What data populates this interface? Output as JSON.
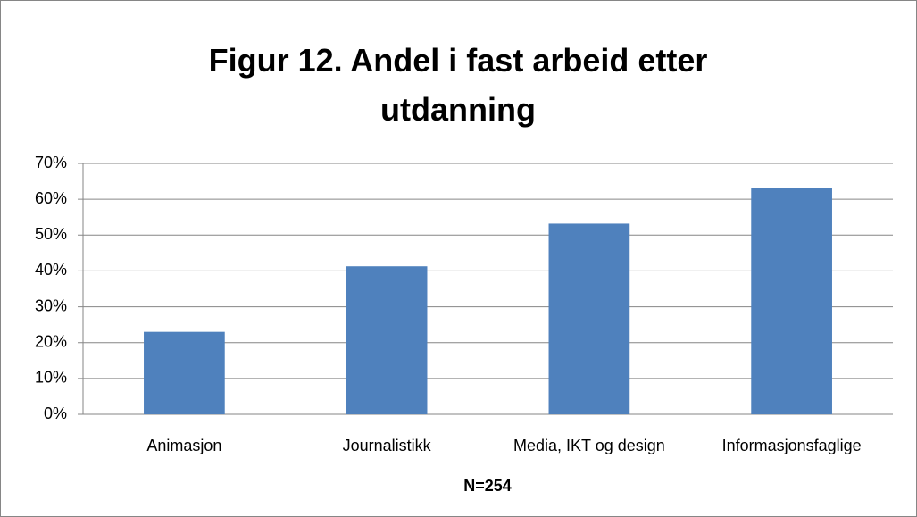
{
  "chart_data": {
    "type": "bar",
    "title": "Figur 12. Andel i fast arbeid etter utdanning",
    "x_label": "N=254",
    "categories": [
      "Animasjon",
      "Journalistikk",
      "Media, IKT og design",
      "Informasjonsfaglige"
    ],
    "values": [
      23,
      41.3,
      53.2,
      63.2
    ],
    "color": "#4f81bd",
    "ylim": [
      0,
      70
    ],
    "yticks": [
      {
        "value": 0,
        "label": "0%"
      },
      {
        "value": 10,
        "label": "10%"
      },
      {
        "value": 20,
        "label": "20%"
      },
      {
        "value": 30,
        "label": "30%"
      },
      {
        "value": 40,
        "label": "40%"
      },
      {
        "value": 50,
        "label": "50%"
      },
      {
        "value": 60,
        "label": "60%"
      },
      {
        "value": 70,
        "label": "70%"
      }
    ],
    "grid": true
  }
}
